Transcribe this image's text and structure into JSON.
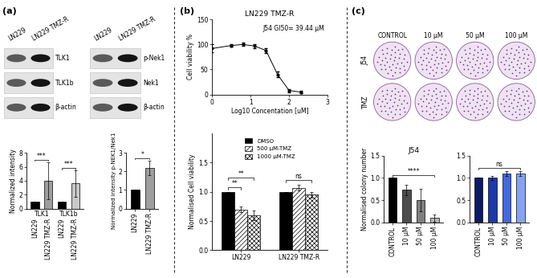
{
  "panel_labels": [
    "(a)",
    "(b)",
    "(c)"
  ],
  "blots": [
    {
      "columns": [
        "LN229",
        "LN229 TMZ-R"
      ],
      "rows": [
        "TLK1",
        "TLK1b",
        "β-actin"
      ]
    },
    {
      "columns": [
        "LN229",
        "LN229 TMZ-R"
      ],
      "rows": [
        "p-Nek1",
        "Nek1",
        "β-actin"
      ]
    }
  ],
  "colony_plates": {
    "columns": [
      "CONTROL",
      "10 μM",
      "50 μM",
      "100 μM"
    ],
    "rows": [
      "J54",
      "TMZ"
    ]
  },
  "chart_data": [
    {
      "type": "bar",
      "y_label": "Normalized intensity",
      "categories": [
        "LN229",
        "LN229 TMZ-R",
        "LN229",
        "LN229 TMZ-R"
      ],
      "groups": [
        {
          "label": "TLK1",
          "members": [
            0,
            1
          ]
        },
        {
          "label": "TLK1b",
          "members": [
            2,
            3
          ]
        }
      ],
      "values": [
        1,
        4.0,
        1,
        3.6
      ],
      "errors": [
        null,
        2.7,
        null,
        1.9
      ],
      "colors": [
        "#000000",
        "#9e9e9e",
        "#000000",
        "#c8c8c8"
      ],
      "ylim": [
        0,
        8
      ],
      "yticks": [
        0,
        2,
        4,
        6,
        8
      ],
      "annotations": [
        {
          "text": "***",
          "from": 0,
          "to": 1
        },
        {
          "text": "***",
          "from": 2,
          "to": 3
        }
      ]
    },
    {
      "type": "bar",
      "y_label": "Normalized intensity p-NEK1/Nek1",
      "categories": [
        "LN229",
        "LN229 TMZ-R"
      ],
      "values": [
        1,
        2.2
      ],
      "errors": [
        null,
        0.4
      ],
      "colors": [
        "#000000",
        "#9e9e9e"
      ],
      "ylim": [
        0,
        3
      ],
      "yticks": [
        0,
        1,
        2,
        3
      ],
      "annotations": [
        {
          "text": "*",
          "from": 0,
          "to": 1
        }
      ]
    },
    {
      "type": "line",
      "title": "LN229 TMZ-R",
      "x_label": "Log10 Concentation [uM]",
      "y_label": "Cell viability %",
      "x": [
        0,
        0.5,
        0.8,
        1.1,
        1.4,
        1.7,
        2.0,
        2.3
      ],
      "values": [
        92,
        98,
        100,
        97,
        88,
        40,
        8,
        5
      ],
      "errors": [
        8,
        3,
        3,
        4,
        5,
        6,
        3,
        2
      ],
      "color": "#000000",
      "marker": "circle",
      "xlim": [
        0,
        3
      ],
      "xticks": [
        0,
        1,
        2,
        3
      ],
      "ylim": [
        0,
        150
      ],
      "yticks": [
        0,
        50,
        100,
        150
      ],
      "annotations": [
        {
          "text": "J54 GI50= 39.44 μM"
        }
      ]
    },
    {
      "type": "bar",
      "y_label": "Normalised Cell viability",
      "categories": [
        "LN229",
        "LN229 TMZ-R"
      ],
      "series": [
        {
          "name": "DMSO",
          "color": "#000000",
          "values": [
            1,
            1
          ],
          "errors": [
            null,
            null
          ]
        },
        {
          "name": "500 μM-TMZ",
          "color": "#ffffff",
          "values": [
            0.7,
            1.07
          ],
          "errors": [
            0.05,
            0.05
          ]
        },
        {
          "name": "1000 μM-TMZ",
          "color": "#ffffff",
          "values": [
            0.6,
            0.95
          ],
          "errors": [
            0.08,
            0.05
          ]
        }
      ],
      "legend": "upper center",
      "ylim": [
        0,
        2
      ],
      "yticks": [
        {
          "value": 0,
          "label": "0.0"
        },
        {
          "value": 0.5,
          "label": "0.5"
        },
        {
          "value": 1,
          "label": "1.0"
        },
        {
          "value": 1.5,
          "label": "1.5"
        }
      ],
      "annotations": [
        {
          "text": "**",
          "category": 0,
          "from": 0,
          "to": 1
        },
        {
          "text": "**",
          "category": 0,
          "from": 0,
          "to": 2
        },
        {
          "text": "ns",
          "category": 1,
          "from": 0,
          "to": 2
        }
      ]
    },
    {
      "type": "bar",
      "title": "J54",
      "y_label": "Normalised colony number",
      "categories": [
        "CONTROL",
        "10 μM",
        "50 μM",
        "100 μM"
      ],
      "values": [
        1,
        0.73,
        0.5,
        0.1
      ],
      "errors": [
        null,
        0.12,
        0.25,
        0.08
      ],
      "colors": [
        "#000000",
        "#4d4d4d",
        "#7f7f7f",
        "#b3b3b3"
      ],
      "ylim": [
        0,
        1.5
      ],
      "yticks": [
        {
          "value": 0,
          "label": "0.0"
        },
        {
          "value": 0.5,
          "label": "0.5"
        },
        {
          "value": 1,
          "label": "1.0"
        },
        {
          "value": 1.5,
          "label": "1.5"
        }
      ],
      "annotations": [
        {
          "text": "****",
          "from": 0,
          "to": 3
        }
      ]
    },
    {
      "type": "bar",
      "categories": [
        "CONTROL",
        "10 μM",
        "50 μM",
        "100 μM"
      ],
      "values": [
        1,
        1.0,
        1.1,
        1.1
      ],
      "errors": [
        null,
        0.04,
        0.06,
        0.06
      ],
      "colors": [
        "#0b1a66",
        "#1c3aa9",
        "#4169e1",
        "#87a2f0"
      ],
      "ylim": [
        0,
        1.5
      ],
      "yticks": [
        {
          "value": 0,
          "label": "0.0"
        },
        {
          "value": 0.5,
          "label": "0.5"
        },
        {
          "value": 1,
          "label": "1.0"
        },
        {
          "value": 1.5,
          "label": "1.5"
        }
      ],
      "annotations": [
        {
          "text": "ns",
          "from": 0,
          "to": 3
        }
      ]
    }
  ]
}
